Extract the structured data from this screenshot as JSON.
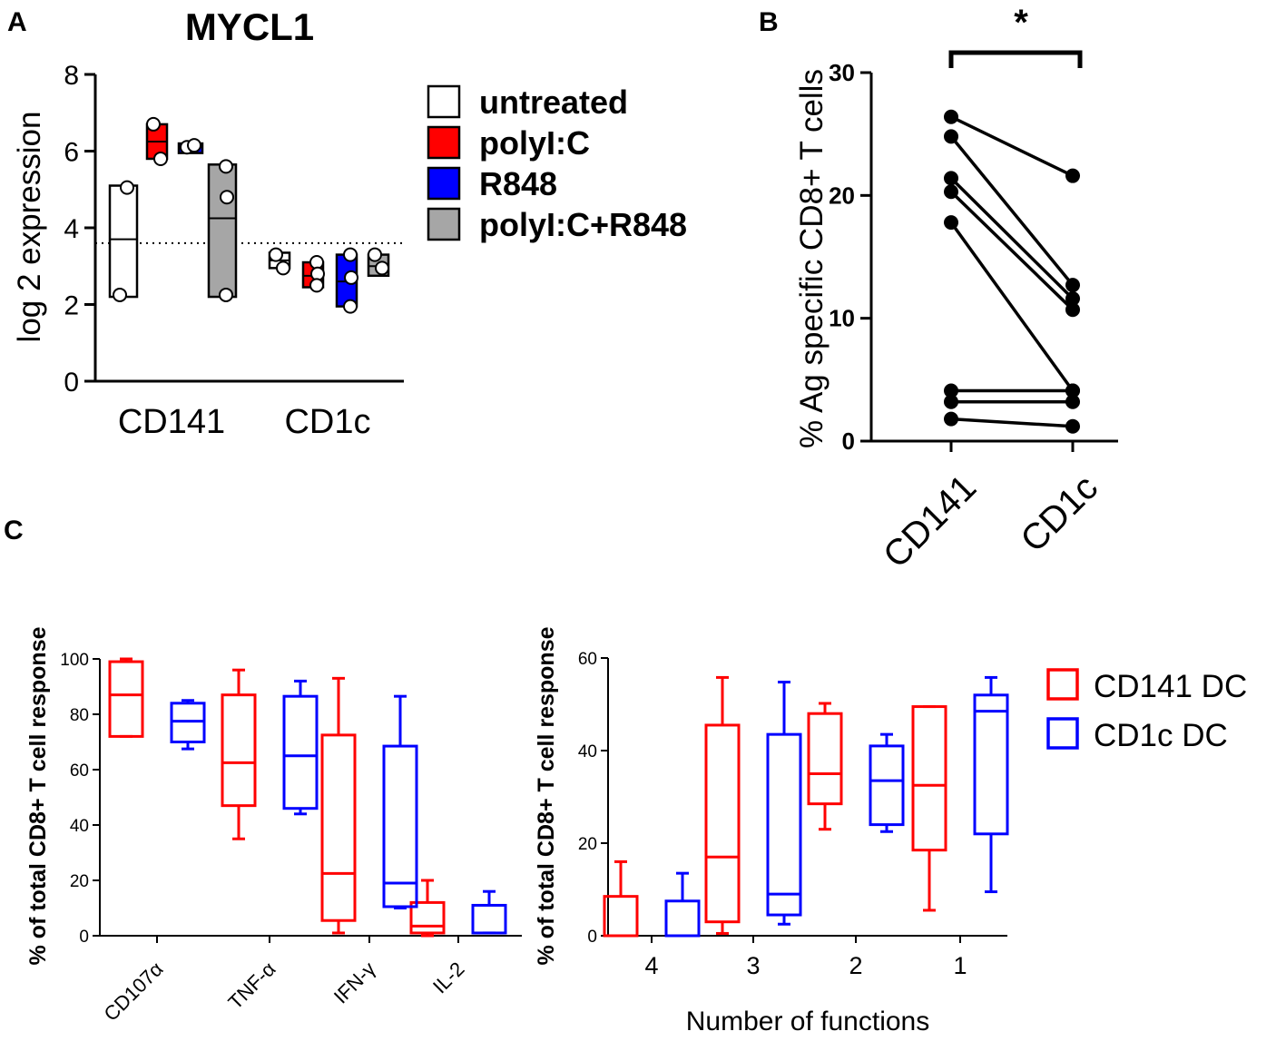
{
  "panels": {
    "a": "A",
    "b": "B",
    "c": "C"
  },
  "colors": {
    "untreated": "#ffffff",
    "polyIC": "#ff0000",
    "R848": "#0000ff",
    "combo": "#a6a6a6",
    "cd141": "#ff0000",
    "cd1c": "#0000ff"
  },
  "chart_data": [
    {
      "id": "A",
      "type": "box",
      "title": "MYCL1",
      "ylabel": "log 2 expression",
      "ylim": [
        0,
        8
      ],
      "yticks": [
        "0",
        "2",
        "4",
        "6",
        "8"
      ],
      "categories": [
        "CD141",
        "CD1c"
      ],
      "reference_line": 3.6,
      "legend": [
        "untreated",
        "polyI:C",
        "R848",
        "polyI:C+R848"
      ],
      "series": [
        {
          "name": "untreated",
          "boxes": [
            {
              "min": 2.2,
              "median": 3.7,
              "max": 5.1,
              "points": [
                2.25,
                5.05
              ]
            },
            {
              "min": 2.95,
              "median": 3.15,
              "max": 3.35,
              "points": [
                3.3,
                2.95
              ]
            }
          ]
        },
        {
          "name": "polyI:C",
          "boxes": [
            {
              "min": 5.8,
              "median": 6.25,
              "max": 6.7,
              "points": [
                6.7,
                5.8
              ]
            },
            {
              "min": 2.45,
              "median": 2.75,
              "max": 3.1,
              "points": [
                3.1,
                2.8,
                2.5
              ]
            }
          ]
        },
        {
          "name": "R848",
          "boxes": [
            {
              "min": 5.95,
              "median": 6.1,
              "max": 6.2,
              "points": [
                6.1,
                6.15
              ]
            },
            {
              "min": 1.95,
              "median": 2.6,
              "max": 3.3,
              "points": [
                3.3,
                2.7,
                1.95
              ]
            }
          ]
        },
        {
          "name": "polyI:C+R848",
          "boxes": [
            {
              "min": 2.2,
              "median": 4.25,
              "max": 5.65,
              "points": [
                5.6,
                4.8,
                2.25
              ]
            },
            {
              "min": 2.75,
              "median": 3.0,
              "max": 3.3,
              "points": [
                3.3,
                2.95
              ]
            }
          ]
        }
      ]
    },
    {
      "id": "B",
      "type": "paired-dot",
      "ylabel": "% Ag specific CD8+ T cells",
      "ylim": [
        0,
        30
      ],
      "yticks": [
        "0",
        "10",
        "20",
        "30"
      ],
      "categories": [
        "CD141",
        "CD1c"
      ],
      "significance": "*",
      "pairs": [
        [
          26.4,
          21.6
        ],
        [
          24.8,
          12.7
        ],
        [
          21.4,
          11.6
        ],
        [
          20.3,
          10.7
        ],
        [
          17.8,
          4.1
        ],
        [
          4.1,
          4.1
        ],
        [
          3.2,
          3.2
        ],
        [
          1.8,
          1.2
        ]
      ]
    },
    {
      "id": "C1",
      "type": "box",
      "ylabel": "% of total  CD8+ T cell response",
      "ylim": [
        0,
        100
      ],
      "yticks": [
        "0",
        "20",
        "40",
        "60",
        "80",
        "100"
      ],
      "categories": [
        "CD107α",
        "TNF-α",
        "IFN-γ",
        "IL-2"
      ],
      "series": [
        {
          "name": "CD141 DC",
          "boxes": [
            {
              "min": 72,
              "q1": 72,
              "median": 87,
              "q3": 99,
              "max": 100
            },
            {
              "min": 35,
              "q1": 47,
              "median": 62.5,
              "q3": 87,
              "max": 96
            },
            {
              "min": 1,
              "q1": 5.5,
              "median": 22.5,
              "q3": 72.5,
              "max": 93
            },
            {
              "min": 0,
              "q1": 1,
              "median": 3.5,
              "q3": 12,
              "max": 20
            }
          ]
        },
        {
          "name": "CD1c DC",
          "boxes": [
            {
              "min": 67.5,
              "q1": 70,
              "median": 77.5,
              "q3": 84,
              "max": 85
            },
            {
              "min": 44,
              "q1": 46,
              "median": 65,
              "q3": 86.5,
              "max": 92
            },
            {
              "min": 10,
              "q1": 10.5,
              "median": 19,
              "q3": 68.5,
              "max": 86.5
            },
            {
              "min": 1,
              "q1": 1,
              "median": 1,
              "q3": 11,
              "max": 16
            }
          ]
        }
      ]
    },
    {
      "id": "C2",
      "type": "box",
      "ylabel": "% of total  CD8+ T cell response",
      "xlabel": "Number of functions",
      "ylim": [
        0,
        60
      ],
      "yticks": [
        "0",
        "20",
        "40",
        "60"
      ],
      "categories": [
        "4",
        "3",
        "2",
        "1"
      ],
      "series": [
        {
          "name": "CD141 DC",
          "boxes": [
            {
              "min": 0,
              "q1": 0,
              "median": 0,
              "q3": 8.5,
              "max": 16
            },
            {
              "min": 0.5,
              "q1": 3,
              "median": 17,
              "q3": 45.5,
              "max": 55.8
            },
            {
              "min": 23,
              "q1": 28.5,
              "median": 35,
              "q3": 48,
              "max": 50.2
            },
            {
              "min": 5.5,
              "q1": 18.5,
              "median": 32.5,
              "q3": 49.5,
              "max": 49.5
            }
          ]
        },
        {
          "name": "CD1c DC",
          "boxes": [
            {
              "min": 0,
              "q1": 0,
              "median": 0,
              "q3": 7.5,
              "max": 13.5
            },
            {
              "min": 2.5,
              "q1": 4.5,
              "median": 9,
              "q3": 43.5,
              "max": 54.8
            },
            {
              "min": 22.5,
              "q1": 24,
              "median": 33.5,
              "q3": 41,
              "max": 43.5
            },
            {
              "min": 9.5,
              "q1": 22,
              "median": 48.5,
              "q3": 52,
              "max": 55.8
            }
          ]
        }
      ],
      "legend": [
        "CD141 DC",
        "CD1c DC"
      ]
    }
  ]
}
